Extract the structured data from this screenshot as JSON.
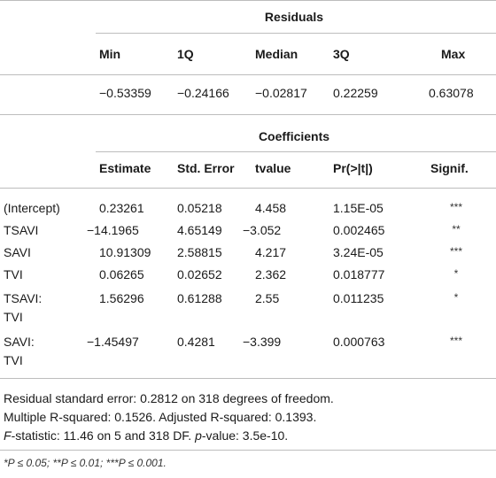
{
  "residuals": {
    "title": "Residuals",
    "headers": [
      "Min",
      "1Q",
      "Median",
      "3Q",
      "Max"
    ],
    "values": [
      "−0.53359",
      "−0.24166",
      "−0.02817",
      "0.22259",
      "0.63078"
    ]
  },
  "coefficients": {
    "title": "Coefficients",
    "headers": [
      "Estimate",
      "Std. Error",
      "tvalue",
      "Pr(>|t|)",
      "Signif."
    ],
    "rows": [
      {
        "term": "(Intercept)",
        "estimate": "0.23261",
        "std_error": "0.05218",
        "tvalue": "4.458",
        "p": "1.15E-05",
        "signif": "***"
      },
      {
        "term": "TSAVI",
        "estimate": "−14.1965",
        "std_error": "4.65149",
        "tvalue": "−3.052",
        "p": "0.002465",
        "signif": "**"
      },
      {
        "term": "SAVI",
        "estimate": "10.91309",
        "std_error": "2.58815",
        "tvalue": "4.217",
        "p": "3.24E-05",
        "signif": "***"
      },
      {
        "term": "TVI",
        "estimate": "0.06265",
        "std_error": "0.02652",
        "tvalue": "2.362",
        "p": "0.018777",
        "signif": "*"
      },
      {
        "term_line1": "TSAVI:",
        "term_line2": "TVI",
        "estimate": "1.56296",
        "std_error": "0.61288",
        "tvalue": "2.55",
        "p": "0.011235",
        "signif": "*"
      },
      {
        "term_line1": "SAVI:",
        "term_line2": "TVI",
        "estimate": "−1.45497",
        "std_error": "0.4281",
        "tvalue": "−3.399",
        "p": "0.000763",
        "signif": "***"
      }
    ]
  },
  "footer": {
    "line1": "Residual standard error: 0.2812 on 318 degrees of freedom.",
    "line2": "Multiple R-squared: 0.1526. Adjusted R-squared: 0.1393.",
    "fstat_label": "F",
    "fstat_text": "-statistic: 11.46 on 5 and 318 DF. ",
    "pvalue_label": "p",
    "pvalue_text": "-value: 3.5e-10.",
    "signif_note": "*P ≤ 0.05; **P ≤ 0.01; ***P ≤ 0.001."
  }
}
